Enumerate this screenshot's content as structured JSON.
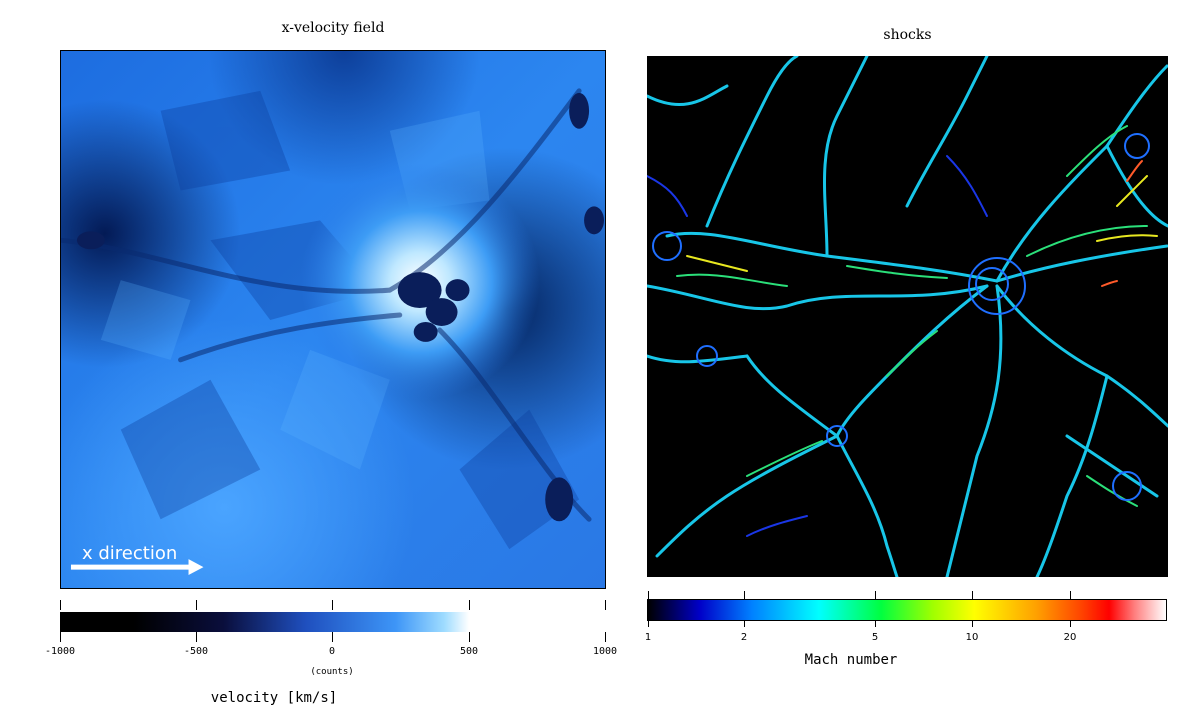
{
  "left_panel": {
    "title": "x-velocity field",
    "annotation": "x direction",
    "colorbar": {
      "ticks": [
        "-1000",
        "-500",
        "0",
        "500",
        "1000"
      ],
      "sublabel": "(counts)",
      "label": "velocity [km/s]",
      "colors": [
        "#000000",
        "#0a0e3c",
        "#2a5fd0",
        "#4aa8ff",
        "#ffffff"
      ]
    }
  },
  "right_panel": {
    "title": "shocks",
    "colorbar": {
      "ticks": [
        "1",
        "2",
        "5",
        "10",
        "20"
      ],
      "label": "Mach number",
      "colors": [
        "#000000",
        "#0000ff",
        "#00ffff",
        "#00ff00",
        "#ffff00",
        "#ff0000",
        "#ffffff"
      ]
    }
  }
}
